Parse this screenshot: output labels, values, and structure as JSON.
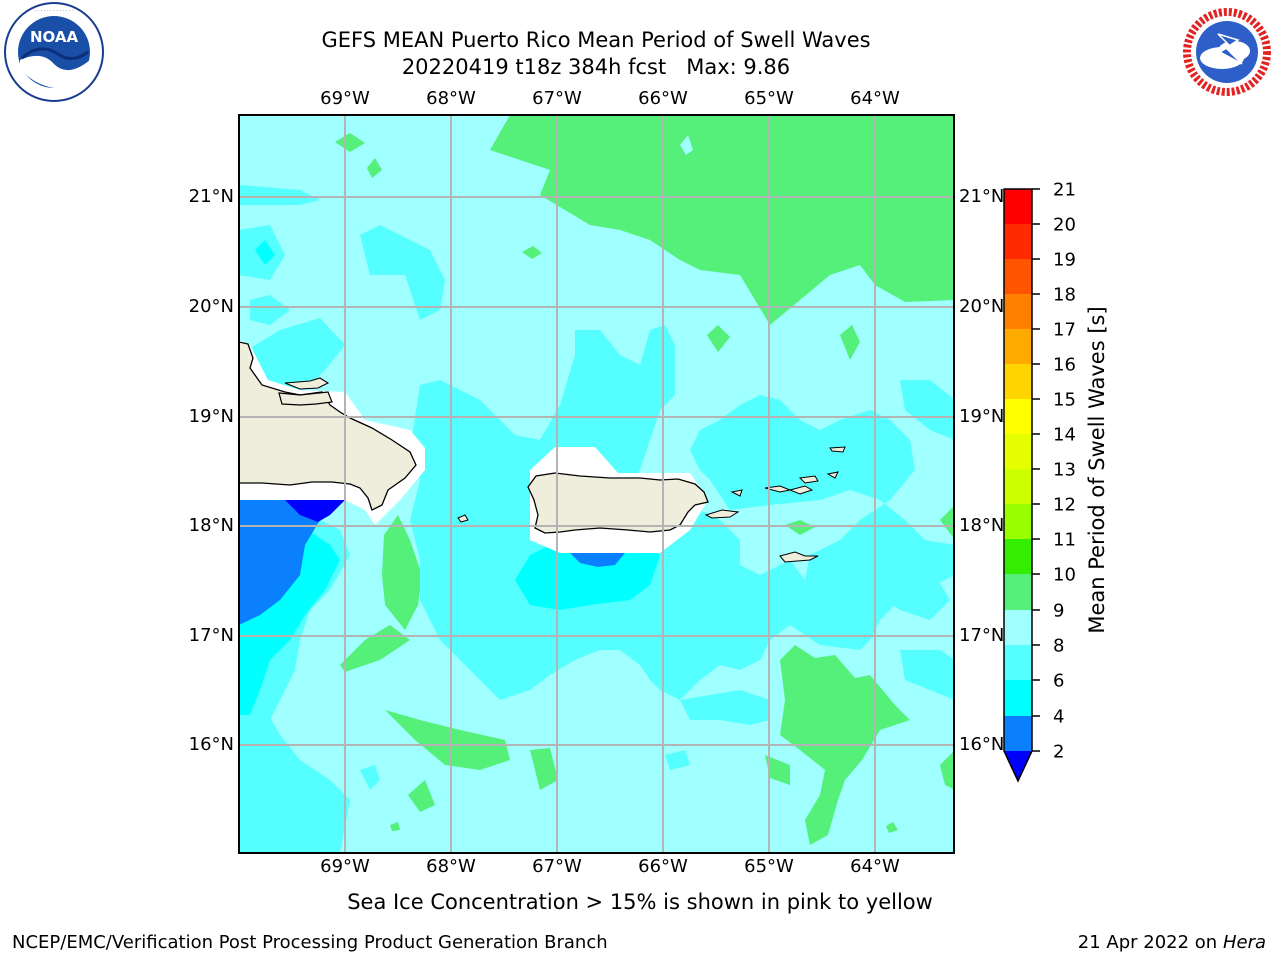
{
  "title": {
    "line1": "GEFS MEAN Puerto Rico Mean Period of Swell Waves",
    "line2": "20220419 t18z 384h fcst   Max: 9.86"
  },
  "logos": {
    "left": {
      "icon": "noaa-logo",
      "text": "NOAA"
    },
    "right": {
      "icon": "nws-logo",
      "text": "NATIONAL WEATHER SERVICE"
    }
  },
  "axes": {
    "lon_labels": [
      "69°W",
      "68°W",
      "67°W",
      "66°W",
      "65°W",
      "64°W"
    ],
    "lat_labels": [
      "21°N",
      "20°N",
      "19°N",
      "18°N",
      "17°N",
      "16°N"
    ]
  },
  "colorbar": {
    "title": "Mean Period of Swell Waves [s]",
    "ticks": [
      "21",
      "20",
      "19",
      "18",
      "17",
      "16",
      "15",
      "14",
      "13",
      "12",
      "11",
      "10",
      "9",
      "8",
      "6",
      "4",
      "2"
    ],
    "colors": [
      "#ff0000",
      "#ff2a00",
      "#ff5500",
      "#ff8000",
      "#ffaa00",
      "#ffd400",
      "#ffff00",
      "#e6ff00",
      "#ccff00",
      "#99ff00",
      "#33ee00",
      "#00dd00",
      "#55f07a",
      "#a0ffff",
      "#55ffff",
      "#00ffff",
      "#0080ff",
      "#0000ff"
    ]
  },
  "map_colors": {
    "lt_cyan": "#a0ffff",
    "cyan": "#55ffff",
    "aqua": "#00ffff",
    "green": "#55f07a",
    "blue": "#0a80ff",
    "dark_blue": "#0000ff",
    "land": "#efeedc",
    "grid": "#b4b4b4"
  },
  "note": "Sea Ice Concentration > 15% is shown in pink to yellow",
  "footer": {
    "left": "NCEP/EMC/Verification Post Processing Product Generation Branch",
    "right_date": "21 Apr 2022 on ",
    "right_host": "Hera"
  }
}
